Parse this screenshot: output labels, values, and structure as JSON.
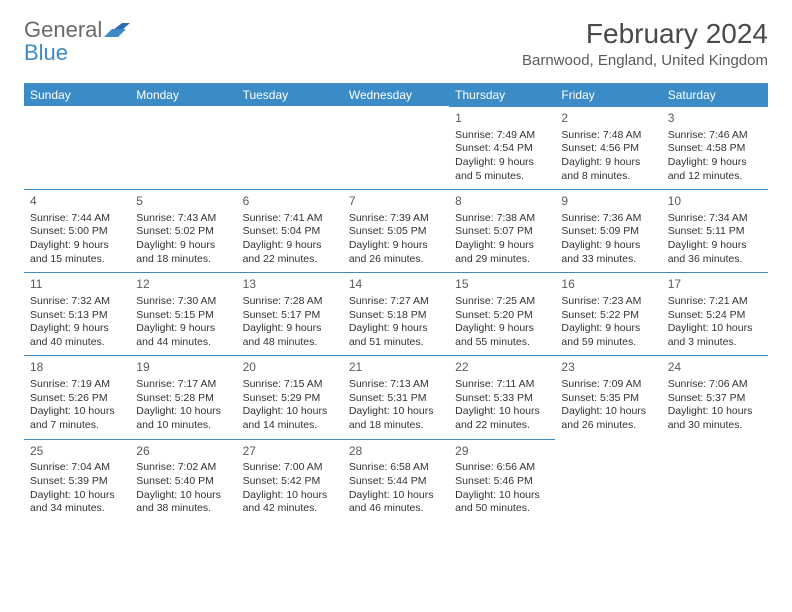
{
  "logo": {
    "text1": "General",
    "text2": "Blue"
  },
  "month_title": "February 2024",
  "location": "Barnwood, England, United Kingdom",
  "colors": {
    "header_bg": "#3b8cc6",
    "header_text": "#ffffff",
    "cell_border": "#3b8cc6",
    "text": "#333333",
    "title_color": "#4a4a4a"
  },
  "weekdays": [
    "Sunday",
    "Monday",
    "Tuesday",
    "Wednesday",
    "Thursday",
    "Friday",
    "Saturday"
  ],
  "days": [
    {
      "n": "1",
      "rise": "Sunrise: 7:49 AM",
      "set": "Sunset: 4:54 PM",
      "day1": "Daylight: 9 hours",
      "day2": "and 5 minutes."
    },
    {
      "n": "2",
      "rise": "Sunrise: 7:48 AM",
      "set": "Sunset: 4:56 PM",
      "day1": "Daylight: 9 hours",
      "day2": "and 8 minutes."
    },
    {
      "n": "3",
      "rise": "Sunrise: 7:46 AM",
      "set": "Sunset: 4:58 PM",
      "day1": "Daylight: 9 hours",
      "day2": "and 12 minutes."
    },
    {
      "n": "4",
      "rise": "Sunrise: 7:44 AM",
      "set": "Sunset: 5:00 PM",
      "day1": "Daylight: 9 hours",
      "day2": "and 15 minutes."
    },
    {
      "n": "5",
      "rise": "Sunrise: 7:43 AM",
      "set": "Sunset: 5:02 PM",
      "day1": "Daylight: 9 hours",
      "day2": "and 18 minutes."
    },
    {
      "n": "6",
      "rise": "Sunrise: 7:41 AM",
      "set": "Sunset: 5:04 PM",
      "day1": "Daylight: 9 hours",
      "day2": "and 22 minutes."
    },
    {
      "n": "7",
      "rise": "Sunrise: 7:39 AM",
      "set": "Sunset: 5:05 PM",
      "day1": "Daylight: 9 hours",
      "day2": "and 26 minutes."
    },
    {
      "n": "8",
      "rise": "Sunrise: 7:38 AM",
      "set": "Sunset: 5:07 PM",
      "day1": "Daylight: 9 hours",
      "day2": "and 29 minutes."
    },
    {
      "n": "9",
      "rise": "Sunrise: 7:36 AM",
      "set": "Sunset: 5:09 PM",
      "day1": "Daylight: 9 hours",
      "day2": "and 33 minutes."
    },
    {
      "n": "10",
      "rise": "Sunrise: 7:34 AM",
      "set": "Sunset: 5:11 PM",
      "day1": "Daylight: 9 hours",
      "day2": "and 36 minutes."
    },
    {
      "n": "11",
      "rise": "Sunrise: 7:32 AM",
      "set": "Sunset: 5:13 PM",
      "day1": "Daylight: 9 hours",
      "day2": "and 40 minutes."
    },
    {
      "n": "12",
      "rise": "Sunrise: 7:30 AM",
      "set": "Sunset: 5:15 PM",
      "day1": "Daylight: 9 hours",
      "day2": "and 44 minutes."
    },
    {
      "n": "13",
      "rise": "Sunrise: 7:28 AM",
      "set": "Sunset: 5:17 PM",
      "day1": "Daylight: 9 hours",
      "day2": "and 48 minutes."
    },
    {
      "n": "14",
      "rise": "Sunrise: 7:27 AM",
      "set": "Sunset: 5:18 PM",
      "day1": "Daylight: 9 hours",
      "day2": "and 51 minutes."
    },
    {
      "n": "15",
      "rise": "Sunrise: 7:25 AM",
      "set": "Sunset: 5:20 PM",
      "day1": "Daylight: 9 hours",
      "day2": "and 55 minutes."
    },
    {
      "n": "16",
      "rise": "Sunrise: 7:23 AM",
      "set": "Sunset: 5:22 PM",
      "day1": "Daylight: 9 hours",
      "day2": "and 59 minutes."
    },
    {
      "n": "17",
      "rise": "Sunrise: 7:21 AM",
      "set": "Sunset: 5:24 PM",
      "day1": "Daylight: 10 hours",
      "day2": "and 3 minutes."
    },
    {
      "n": "18",
      "rise": "Sunrise: 7:19 AM",
      "set": "Sunset: 5:26 PM",
      "day1": "Daylight: 10 hours",
      "day2": "and 7 minutes."
    },
    {
      "n": "19",
      "rise": "Sunrise: 7:17 AM",
      "set": "Sunset: 5:28 PM",
      "day1": "Daylight: 10 hours",
      "day2": "and 10 minutes."
    },
    {
      "n": "20",
      "rise": "Sunrise: 7:15 AM",
      "set": "Sunset: 5:29 PM",
      "day1": "Daylight: 10 hours",
      "day2": "and 14 minutes."
    },
    {
      "n": "21",
      "rise": "Sunrise: 7:13 AM",
      "set": "Sunset: 5:31 PM",
      "day1": "Daylight: 10 hours",
      "day2": "and 18 minutes."
    },
    {
      "n": "22",
      "rise": "Sunrise: 7:11 AM",
      "set": "Sunset: 5:33 PM",
      "day1": "Daylight: 10 hours",
      "day2": "and 22 minutes."
    },
    {
      "n": "23",
      "rise": "Sunrise: 7:09 AM",
      "set": "Sunset: 5:35 PM",
      "day1": "Daylight: 10 hours",
      "day2": "and 26 minutes."
    },
    {
      "n": "24",
      "rise": "Sunrise: 7:06 AM",
      "set": "Sunset: 5:37 PM",
      "day1": "Daylight: 10 hours",
      "day2": "and 30 minutes."
    },
    {
      "n": "25",
      "rise": "Sunrise: 7:04 AM",
      "set": "Sunset: 5:39 PM",
      "day1": "Daylight: 10 hours",
      "day2": "and 34 minutes."
    },
    {
      "n": "26",
      "rise": "Sunrise: 7:02 AM",
      "set": "Sunset: 5:40 PM",
      "day1": "Daylight: 10 hours",
      "day2": "and 38 minutes."
    },
    {
      "n": "27",
      "rise": "Sunrise: 7:00 AM",
      "set": "Sunset: 5:42 PM",
      "day1": "Daylight: 10 hours",
      "day2": "and 42 minutes."
    },
    {
      "n": "28",
      "rise": "Sunrise: 6:58 AM",
      "set": "Sunset: 5:44 PM",
      "day1": "Daylight: 10 hours",
      "day2": "and 46 minutes."
    },
    {
      "n": "29",
      "rise": "Sunrise: 6:56 AM",
      "set": "Sunset: 5:46 PM",
      "day1": "Daylight: 10 hours",
      "day2": "and 50 minutes."
    }
  ],
  "leading_blanks": 4,
  "trailing_blanks": 2
}
